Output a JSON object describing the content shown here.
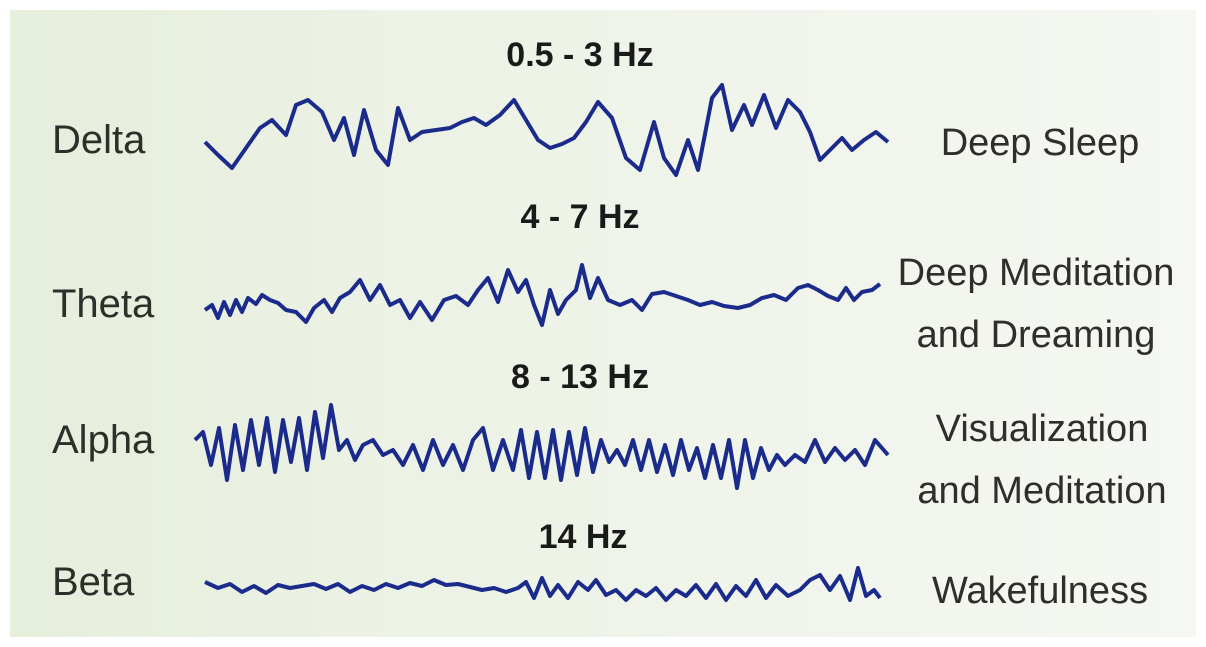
{
  "wave_color": "#1b2b8c",
  "rows": [
    {
      "frequency": "0.5 - 3 Hz",
      "band": "Delta",
      "state": "Deep Sleep"
    },
    {
      "frequency": "4 - 7 Hz",
      "band": "Theta",
      "state": "Deep Meditation\nand Dreaming"
    },
    {
      "frequency": "8 - 13 Hz",
      "band": "Alpha",
      "state": "Visualization\nand Meditation"
    },
    {
      "frequency": "14 Hz",
      "band": "Beta",
      "state": "Wakefulness"
    }
  ]
}
